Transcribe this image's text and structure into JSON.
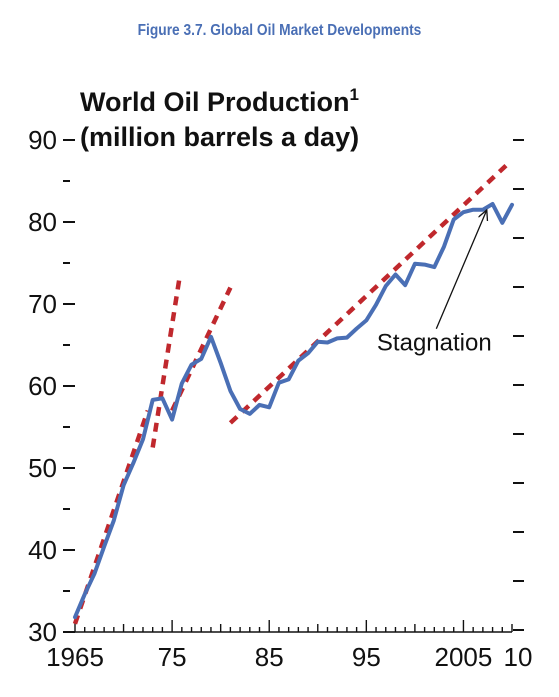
{
  "figure_title": "Figure 3.7.  Global Oil Market Developments",
  "chart_data": {
    "type": "line",
    "title": "World Oil Production",
    "title_superscript": "1",
    "ylabel": "(million barrels a day)",
    "xlim": [
      1965,
      2010
    ],
    "ylim": [
      30,
      90
    ],
    "y_ticks": [
      30,
      40,
      50,
      60,
      70,
      80,
      90
    ],
    "x_ticks": [
      1965,
      1975,
      1985,
      1995,
      2005,
      2010
    ],
    "x_tick_labels": [
      "1965",
      "75",
      "85",
      "95",
      "2005",
      "10"
    ],
    "grid": false,
    "series": [
      {
        "kind": "actual",
        "color": "#4a6fb5",
        "x": [
          1965,
          1966,
          1967,
          1968,
          1969,
          1970,
          1971,
          1972,
          1973,
          1974,
          1975,
          1976,
          1977,
          1978,
          1979,
          1980,
          1981,
          1982,
          1983,
          1984,
          1985,
          1986,
          1987,
          1988,
          1989,
          1990,
          1991,
          1992,
          1993,
          1994,
          1995,
          1996,
          1997,
          1998,
          1999,
          2000,
          2001,
          2002,
          2003,
          2004,
          2005,
          2006,
          2007,
          2008,
          2009,
          2010
        ],
        "values": [
          31.8,
          34.6,
          37.1,
          40.4,
          43.6,
          47.9,
          50.6,
          53.5,
          58.3,
          58.5,
          55.9,
          60.3,
          62.6,
          63.3,
          66.0,
          62.8,
          59.4,
          57.2,
          56.6,
          57.7,
          57.4,
          60.4,
          60.8,
          63.1,
          64.0,
          65.4,
          65.3,
          65.8,
          65.9,
          67.0,
          68.0,
          69.9,
          72.2,
          73.6,
          72.3,
          74.9,
          74.8,
          74.5,
          77.0,
          80.3,
          81.2,
          81.5,
          81.5,
          82.2,
          79.9,
          82.1
        ]
      },
      {
        "kind": "trend-1965-1973",
        "color": "#c0282d",
        "dashed": true,
        "x": [
          1965,
          1972.5
        ],
        "values": [
          31,
          57
        ]
      },
      {
        "kind": "trend-1973-1976",
        "color": "#c0282d",
        "dashed": true,
        "x": [
          1973,
          1975.8
        ],
        "values": [
          52.5,
          73.5
        ]
      },
      {
        "kind": "trend-1975-1980",
        "color": "#c0282d",
        "dashed": true,
        "x": [
          1975,
          1981
        ],
        "values": [
          57,
          72
        ]
      },
      {
        "kind": "trend-1981-2010",
        "color": "#c0282d",
        "dashed": true,
        "x": [
          1981,
          2009.5
        ],
        "values": [
          55.5,
          87
        ]
      }
    ],
    "annotations": [
      {
        "text": "Stagnation",
        "x": 2002,
        "y": 64.3,
        "arrow_to": [
          2007.3,
          82.2
        ]
      }
    ]
  }
}
